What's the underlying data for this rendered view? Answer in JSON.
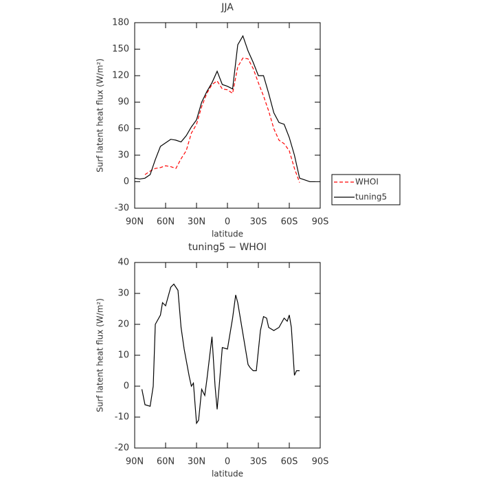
{
  "chart_data": [
    {
      "type": "line",
      "title": "JJA",
      "xlabel": "latitude",
      "ylabel": "Surf latent heat flux (W/m²)",
      "x": [
        90,
        85,
        80,
        75,
        70,
        65,
        60,
        55,
        50,
        45,
        40,
        35,
        30,
        25,
        20,
        15,
        10,
        5,
        0,
        -5,
        -10,
        -15,
        -20,
        -25,
        -30,
        -35,
        -40,
        -45,
        -50,
        -55,
        -60,
        -65,
        -70,
        -75,
        -80,
        -85,
        -90
      ],
      "series": [
        {
          "name": "WHOI",
          "color": "#ff0000",
          "dash": true,
          "values": [
            null,
            null,
            8,
            12,
            15,
            16,
            18,
            17,
            15,
            26,
            35,
            55,
            65,
            85,
            100,
            110,
            114,
            105,
            104,
            100,
            130,
            140,
            139,
            128,
            112,
            97,
            80,
            60,
            47,
            43,
            35,
            15,
            -1,
            null,
            null,
            null,
            null
          ]
        },
        {
          "name": "tuning5",
          "color": "#000000",
          "dash": false,
          "values": [
            4,
            3,
            4,
            8,
            25,
            40,
            44,
            48,
            47,
            45,
            52,
            62,
            70,
            90,
            102,
            112,
            125,
            110,
            108,
            105,
            155,
            165,
            148,
            135,
            120,
            120,
            100,
            78,
            67,
            65,
            50,
            30,
            4,
            2,
            0,
            0,
            null
          ]
        }
      ],
      "xlim": [
        90,
        -90
      ],
      "xticks": [
        {
          "value": 90,
          "label": "90N"
        },
        {
          "value": 60,
          "label": "60N"
        },
        {
          "value": 30,
          "label": "30N"
        },
        0,
        {
          "value": -30,
          "label": "30S"
        },
        {
          "value": -60,
          "label": "60S"
        },
        {
          "value": -90,
          "label": "90S"
        }
      ],
      "ylim": [
        -30,
        180
      ],
      "yticks": [
        -30,
        0,
        30,
        60,
        90,
        120,
        150,
        180
      ],
      "legend": "right"
    },
    {
      "type": "line",
      "title": "tuning5 − WHOI",
      "xlabel": "latitude",
      "ylabel": "Surf latent heat flux (W/m²)",
      "x": [
        83,
        80,
        75,
        72,
        70,
        65,
        63,
        60,
        55,
        52,
        48,
        45,
        42,
        37,
        35,
        33,
        30,
        28,
        25,
        22,
        20,
        15,
        12,
        10,
        8,
        5,
        0,
        -5,
        -8,
        -10,
        -12,
        -15,
        -20,
        -22,
        -25,
        -28,
        -32,
        -35,
        -38,
        -40,
        -45,
        -50,
        -55,
        -58,
        -60,
        -62,
        -65,
        -67,
        -70
      ],
      "series": [
        {
          "name": "tuning5 − WHOI",
          "color": "#000000",
          "dash": false,
          "values": [
            -1,
            -6,
            -6.5,
            0,
            20,
            23,
            27,
            26,
            32,
            33,
            31,
            19,
            12,
            3,
            0,
            1,
            -12,
            -11,
            -1,
            -3,
            2,
            16,
            0,
            -7.5,
            0,
            12.5,
            12,
            22,
            29.5,
            27,
            23,
            17,
            7,
            6,
            5,
            5,
            18,
            22.5,
            22,
            19,
            18,
            19,
            22,
            21,
            23,
            19,
            3.5,
            5,
            5
          ]
        }
      ],
      "xlim": [
        90,
        -90
      ],
      "xticks": [
        {
          "value": 90,
          "label": "90N"
        },
        {
          "value": 60,
          "label": "60N"
        },
        {
          "value": 30,
          "label": "30N"
        },
        0,
        {
          "value": -30,
          "label": "30S"
        },
        {
          "value": -60,
          "label": "60S"
        },
        {
          "value": -90,
          "label": "90S"
        }
      ],
      "ylim": [
        -20,
        40
      ],
      "yticks": [
        -20,
        -10,
        0,
        10,
        20,
        30,
        40
      ]
    }
  ]
}
